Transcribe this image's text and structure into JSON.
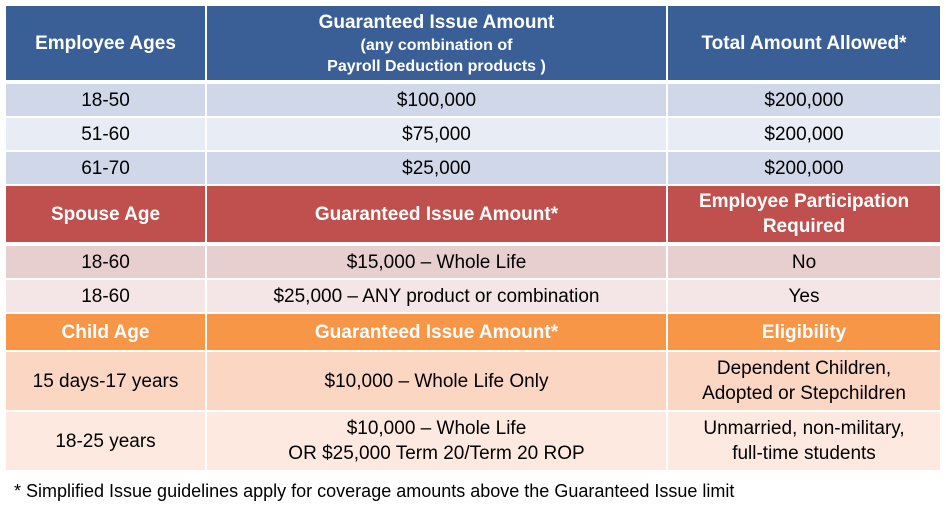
{
  "sections": [
    {
      "header": [
        "Employee Ages",
        {
          "title": "Guaranteed Issue Amount",
          "note": [
            "(any combination of",
            "Payroll Deduction products )"
          ]
        },
        "Total Amount Allowed*"
      ],
      "rows": [
        [
          "18-50",
          "$100,000",
          "$200,000"
        ],
        [
          "51-60",
          "$75,000",
          "$200,000"
        ],
        [
          "61-70",
          "$25,000",
          "$200,000"
        ]
      ]
    },
    {
      "header": [
        "Spouse Age",
        "Guaranteed Issue Amount*",
        [
          "Employee Participation",
          "Required"
        ]
      ],
      "rows": [
        [
          "18-60",
          "$15,000 – Whole Life",
          "No"
        ],
        [
          "18-60",
          "$25,000 – ANY product or combination",
          "Yes"
        ]
      ]
    },
    {
      "header": [
        "Child Age",
        "Guaranteed Issue Amount*",
        "Eligibility"
      ],
      "rows": [
        [
          "15 days-17 years",
          "$10,000 – Whole Life Only",
          [
            "Dependent Children,",
            "Adopted or Stepchildren"
          ]
        ],
        [
          "18-25 years",
          [
            "$10,000 – Whole Life",
            "OR $25,000 Term 20/Term 20 ROP"
          ],
          [
            "Unmarried, non-military,",
            "full-time students"
          ]
        ]
      ]
    }
  ],
  "footnote": "* Simplified Issue guidelines apply for coverage amounts above the Guaranteed Issue limit"
}
